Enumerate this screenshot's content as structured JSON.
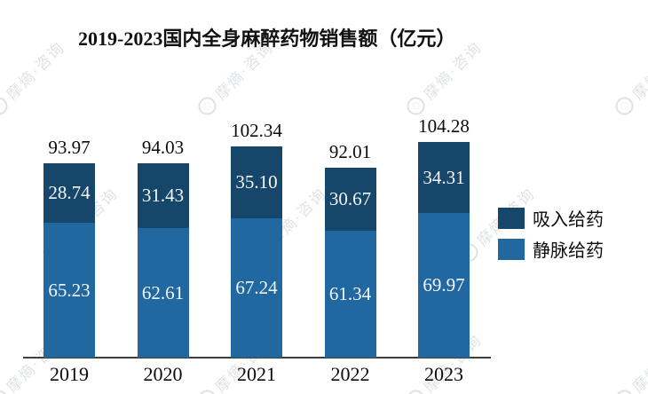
{
  "title": "2019-2023国内全身麻醉药物销售额（亿元）",
  "watermark": {
    "text": "摩熵·咨询",
    "icon": "ring-logo-icon"
  },
  "colors": {
    "inhalation_dark_blue": "#17466b",
    "intravenous_light_blue": "#2167a0",
    "axis": "#3f3f3f",
    "watermark_gray": "#8f9aa5"
  },
  "legend": [
    {
      "label": "吸入给药",
      "color": "#17466b"
    },
    {
      "label": "静脉给药",
      "color": "#2167a0"
    }
  ],
  "chart_data": {
    "type": "bar",
    "stacked": true,
    "title": "2019-2023国内全身麻醉药物销售额（亿元）",
    "unit": "亿元",
    "categories": [
      "2019",
      "2020",
      "2021",
      "2022",
      "2023"
    ],
    "series": [
      {
        "name": "静脉给药",
        "color": "#2167a0",
        "position": "bottom",
        "values": [
          "65.23",
          "62.61",
          "67.24",
          "61.34",
          "69.97"
        ]
      },
      {
        "name": "吸入给药",
        "color": "#17466b",
        "position": "top",
        "values": [
          "28.74",
          "31.43",
          "35.10",
          "30.67",
          "34.31"
        ]
      }
    ],
    "totals": [
      "93.97",
      "94.03",
      "102.34",
      "92.01",
      "104.28"
    ],
    "ylim": [
      0,
      110
    ],
    "grid": false,
    "y_axis_shown": false,
    "legend_position": "right",
    "value_labels": "inside-segments-and-total-above"
  }
}
